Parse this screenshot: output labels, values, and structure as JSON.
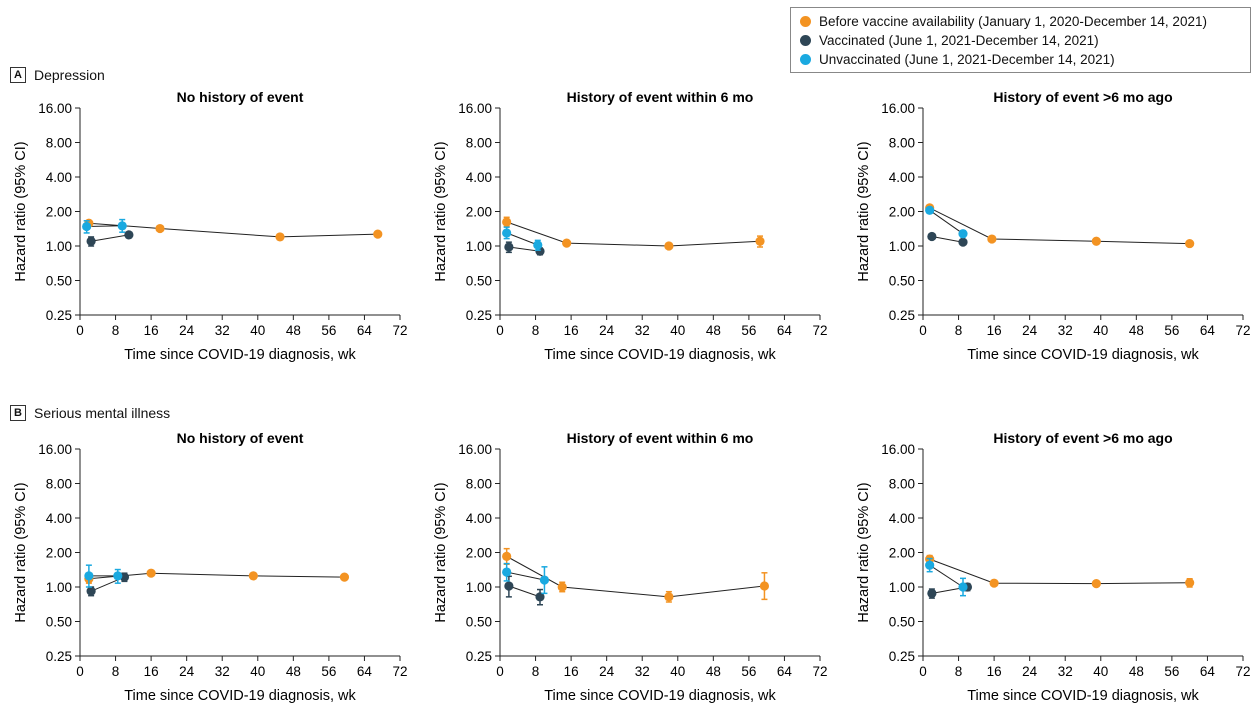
{
  "legend": {
    "items": [
      {
        "label": "Before vaccine availability (January 1, 2020-December 14, 2021)",
        "color": "#f39322"
      },
      {
        "label": "Vaccinated (June 1, 2021-December 14, 2021)",
        "color": "#2e4656"
      },
      {
        "label": "Unvaccinated (June 1, 2021-December 14, 2021)",
        "color": "#1aa9e0"
      }
    ]
  },
  "sections": [
    {
      "letter": "A",
      "title": "Depression"
    },
    {
      "letter": "B",
      "title": "Serious mental illness"
    }
  ],
  "chart_data": [
    {
      "type": "line",
      "section": "A",
      "title": "No history of event",
      "xlabel": "Time since COVID-19 diagnosis, wk",
      "ylabel": "Hazard ratio (95% CI)",
      "xlim": [
        0,
        72
      ],
      "xticks": [
        0,
        8,
        16,
        24,
        32,
        40,
        48,
        56,
        64,
        72
      ],
      "ylim": [
        0.25,
        16
      ],
      "yscale": "log2",
      "yticklabels": [
        "0.25",
        "0.50",
        "1.00",
        "2.00",
        "4.00",
        "8.00",
        "16.00"
      ],
      "series": [
        {
          "name": "Before vaccine availability (January 1, 2020-December 14, 2021)",
          "color": "#f39322",
          "points": [
            {
              "x": 2,
              "y": 1.58,
              "lo": 1.5,
              "hi": 1.66
            },
            {
              "x": 18,
              "y": 1.42,
              "lo": 1.38,
              "hi": 1.46
            },
            {
              "x": 45,
              "y": 1.2,
              "lo": 1.17,
              "hi": 1.23
            },
            {
              "x": 67,
              "y": 1.27,
              "lo": 1.23,
              "hi": 1.31
            }
          ]
        },
        {
          "name": "Vaccinated (June 1, 2021-December 14, 2021)",
          "color": "#2e4656",
          "points": [
            {
              "x": 2.5,
              "y": 1.1,
              "lo": 1.0,
              "hi": 1.2
            },
            {
              "x": 11,
              "y": 1.25,
              "lo": 1.2,
              "hi": 1.3
            }
          ]
        },
        {
          "name": "Unvaccinated (June 1, 2021-December 14, 2021)",
          "color": "#1aa9e0",
          "points": [
            {
              "x": 1.5,
              "y": 1.48,
              "lo": 1.3,
              "hi": 1.66
            },
            {
              "x": 9.5,
              "y": 1.5,
              "lo": 1.32,
              "hi": 1.7
            }
          ]
        }
      ]
    },
    {
      "type": "line",
      "section": "A",
      "title": "History of event within 6 mo",
      "xlabel": "Time since COVID-19 diagnosis, wk",
      "ylabel": "Hazard ratio (95% CI)",
      "xlim": [
        0,
        72
      ],
      "xticks": [
        0,
        8,
        16,
        24,
        32,
        40,
        48,
        56,
        64,
        72
      ],
      "ylim": [
        0.25,
        16
      ],
      "yscale": "log2",
      "yticklabels": [
        "0.25",
        "0.50",
        "1.00",
        "2.00",
        "4.00",
        "8.00",
        "16.00"
      ],
      "series": [
        {
          "name": "Before vaccine availability (January 1, 2020-December 14, 2021)",
          "color": "#f39322",
          "points": [
            {
              "x": 1.5,
              "y": 1.62,
              "lo": 1.48,
              "hi": 1.78
            },
            {
              "x": 15,
              "y": 1.06,
              "lo": 1.02,
              "hi": 1.1
            },
            {
              "x": 38,
              "y": 1.0,
              "lo": 0.97,
              "hi": 1.03
            },
            {
              "x": 58.5,
              "y": 1.1,
              "lo": 0.98,
              "hi": 1.22
            }
          ]
        },
        {
          "name": "Vaccinated (June 1, 2021-December 14, 2021)",
          "color": "#2e4656",
          "points": [
            {
              "x": 2,
              "y": 0.98,
              "lo": 0.88,
              "hi": 1.08
            },
            {
              "x": 9,
              "y": 0.9,
              "lo": 0.84,
              "hi": 0.96
            }
          ]
        },
        {
          "name": "Unvaccinated (June 1, 2021-December 14, 2021)",
          "color": "#1aa9e0",
          "points": [
            {
              "x": 1.5,
              "y": 1.3,
              "lo": 1.16,
              "hi": 1.46
            },
            {
              "x": 8.5,
              "y": 1.02,
              "lo": 0.92,
              "hi": 1.12
            }
          ]
        }
      ]
    },
    {
      "type": "line",
      "section": "A",
      "title": "History of event >6 mo ago",
      "xlabel": "Time since COVID-19 diagnosis, wk",
      "ylabel": "Hazard ratio (95% CI)",
      "xlim": [
        0,
        72
      ],
      "xticks": [
        0,
        8,
        16,
        24,
        32,
        40,
        48,
        56,
        64,
        72
      ],
      "ylim": [
        0.25,
        16
      ],
      "yscale": "log2",
      "yticklabels": [
        "0.25",
        "0.50",
        "1.00",
        "2.00",
        "4.00",
        "8.00",
        "16.00"
      ],
      "series": [
        {
          "name": "Before vaccine availability (January 1, 2020-December 14, 2021)",
          "color": "#f39322",
          "points": [
            {
              "x": 1.5,
              "y": 2.15,
              "lo": 2.05,
              "hi": 2.25
            },
            {
              "x": 15.5,
              "y": 1.15,
              "lo": 1.12,
              "hi": 1.18
            },
            {
              "x": 39,
              "y": 1.1,
              "lo": 1.07,
              "hi": 1.13
            },
            {
              "x": 60,
              "y": 1.05,
              "lo": 1.02,
              "hi": 1.08
            }
          ]
        },
        {
          "name": "Vaccinated (June 1, 2021-December 14, 2021)",
          "color": "#2e4656",
          "points": [
            {
              "x": 2,
              "y": 1.21,
              "lo": 1.17,
              "hi": 1.25
            },
            {
              "x": 9,
              "y": 1.08,
              "lo": 1.03,
              "hi": 1.13
            }
          ]
        },
        {
          "name": "Unvaccinated (June 1, 2021-December 14, 2021)",
          "color": "#1aa9e0",
          "points": [
            {
              "x": 1.5,
              "y": 2.05,
              "lo": 1.93,
              "hi": 2.17
            },
            {
              "x": 9,
              "y": 1.28,
              "lo": 1.2,
              "hi": 1.36
            }
          ]
        }
      ]
    },
    {
      "type": "line",
      "section": "B",
      "title": "No history of event",
      "xlabel": "Time since COVID-19 diagnosis, wk",
      "ylabel": "Hazard ratio (95% CI)",
      "xlim": [
        0,
        72
      ],
      "xticks": [
        0,
        8,
        16,
        24,
        32,
        40,
        48,
        56,
        64,
        72
      ],
      "ylim": [
        0.25,
        16
      ],
      "yscale": "log2",
      "yticklabels": [
        "0.25",
        "0.50",
        "1.00",
        "2.00",
        "4.00",
        "8.00",
        "16.00"
      ],
      "series": [
        {
          "name": "Before vaccine availability (January 1, 2020-December 14, 2021)",
          "color": "#f39322",
          "points": [
            {
              "x": 2,
              "y": 1.18,
              "lo": 1.08,
              "hi": 1.28
            },
            {
              "x": 16,
              "y": 1.32,
              "lo": 1.28,
              "hi": 1.36
            },
            {
              "x": 39,
              "y": 1.25,
              "lo": 1.21,
              "hi": 1.29
            },
            {
              "x": 59.5,
              "y": 1.22,
              "lo": 1.16,
              "hi": 1.28
            }
          ]
        },
        {
          "name": "Vaccinated (June 1, 2021-December 14, 2021)",
          "color": "#2e4656",
          "points": [
            {
              "x": 2.5,
              "y": 0.92,
              "lo": 0.84,
              "hi": 1.0
            },
            {
              "x": 10,
              "y": 1.22,
              "lo": 1.12,
              "hi": 1.32
            }
          ]
        },
        {
          "name": "Unvaccinated (June 1, 2021-December 14, 2021)",
          "color": "#1aa9e0",
          "points": [
            {
              "x": 2,
              "y": 1.25,
              "lo": 1.0,
              "hi": 1.55
            },
            {
              "x": 8.5,
              "y": 1.25,
              "lo": 1.08,
              "hi": 1.42
            }
          ]
        }
      ]
    },
    {
      "type": "line",
      "section": "B",
      "title": "History of event within 6 mo",
      "xlabel": "Time since COVID-19 diagnosis, wk",
      "ylabel": "Hazard ratio (95% CI)",
      "xlim": [
        0,
        72
      ],
      "xticks": [
        0,
        8,
        16,
        24,
        32,
        40,
        48,
        56,
        64,
        72
      ],
      "ylim": [
        0.25,
        16
      ],
      "yscale": "log2",
      "yticklabels": [
        "0.25",
        "0.50",
        "1.00",
        "2.00",
        "4.00",
        "8.00",
        "16.00"
      ],
      "series": [
        {
          "name": "Before vaccine availability (January 1, 2020-December 14, 2021)",
          "color": "#f39322",
          "points": [
            {
              "x": 1.5,
              "y": 1.85,
              "lo": 1.58,
              "hi": 2.16
            },
            {
              "x": 14,
              "y": 1.0,
              "lo": 0.91,
              "hi": 1.1
            },
            {
              "x": 38,
              "y": 0.82,
              "lo": 0.74,
              "hi": 0.91
            },
            {
              "x": 59.5,
              "y": 1.02,
              "lo": 0.78,
              "hi": 1.33
            }
          ]
        },
        {
          "name": "Vaccinated (June 1, 2021-December 14, 2021)",
          "color": "#2e4656",
          "points": [
            {
              "x": 2,
              "y": 1.02,
              "lo": 0.82,
              "hi": 1.24
            },
            {
              "x": 9,
              "y": 0.82,
              "lo": 0.7,
              "hi": 0.95
            }
          ]
        },
        {
          "name": "Unvaccinated (June 1, 2021-December 14, 2021)",
          "color": "#1aa9e0",
          "points": [
            {
              "x": 1.5,
              "y": 1.35,
              "lo": 1.13,
              "hi": 1.6
            },
            {
              "x": 10,
              "y": 1.15,
              "lo": 0.88,
              "hi": 1.5
            }
          ]
        }
      ]
    },
    {
      "type": "line",
      "section": "B",
      "title": "History of event >6 mo ago",
      "xlabel": "Time since COVID-19 diagnosis, wk",
      "ylabel": "Hazard ratio (95% CI)",
      "xlim": [
        0,
        72
      ],
      "xticks": [
        0,
        8,
        16,
        24,
        32,
        40,
        48,
        56,
        64,
        72
      ],
      "ylim": [
        0.25,
        16
      ],
      "yscale": "log2",
      "yticklabels": [
        "0.25",
        "0.50",
        "1.00",
        "2.00",
        "4.00",
        "8.00",
        "16.00"
      ],
      "series": [
        {
          "name": "Before vaccine availability (January 1, 2020-December 14, 2021)",
          "color": "#f39322",
          "points": [
            {
              "x": 1.5,
              "y": 1.75,
              "lo": 1.62,
              "hi": 1.88
            },
            {
              "x": 16,
              "y": 1.08,
              "lo": 1.04,
              "hi": 1.12
            },
            {
              "x": 39,
              "y": 1.07,
              "lo": 1.03,
              "hi": 1.11
            },
            {
              "x": 60,
              "y": 1.09,
              "lo": 1.0,
              "hi": 1.18
            }
          ]
        },
        {
          "name": "Vaccinated (June 1, 2021-December 14, 2021)",
          "color": "#2e4656",
          "points": [
            {
              "x": 2,
              "y": 0.88,
              "lo": 0.8,
              "hi": 0.96
            },
            {
              "x": 10,
              "y": 1.0,
              "lo": 0.93,
              "hi": 1.07
            }
          ]
        },
        {
          "name": "Unvaccinated (June 1, 2021-December 14, 2021)",
          "color": "#1aa9e0",
          "points": [
            {
              "x": 1.5,
              "y": 1.55,
              "lo": 1.36,
              "hi": 1.77
            },
            {
              "x": 9,
              "y": 1.0,
              "lo": 0.84,
              "hi": 1.19
            }
          ]
        }
      ]
    }
  ]
}
